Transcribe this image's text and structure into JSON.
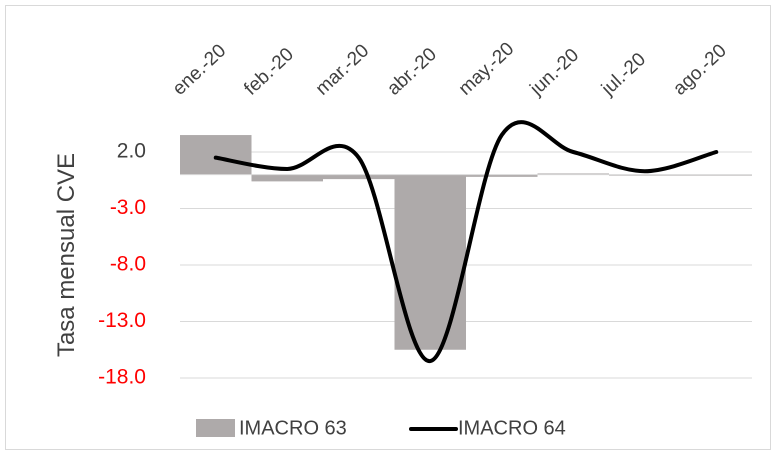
{
  "chart_data": {
    "type": "bar",
    "categories": [
      "ene.-20",
      "feb.-20",
      "mar.-20",
      "abr.-20",
      "may.-20",
      "jun.-20",
      "jul.-20",
      "ago.-20"
    ],
    "series": [
      {
        "name": "IMACRO 63",
        "type": "bar",
        "color": "#aeaaaa",
        "values": [
          3.5,
          -0.6,
          -0.4,
          -15.5,
          -0.2,
          0.1,
          0.0,
          0.0
        ]
      },
      {
        "name": "IMACRO 64",
        "type": "line",
        "color": "#000000",
        "values": [
          1.5,
          0.5,
          1.5,
          -16.5,
          3.5,
          2.0,
          0.3,
          2.0
        ]
      }
    ],
    "title": "",
    "xlabel": "",
    "ylabel": "Tasa mensual CVE",
    "yticks": [
      "2.0",
      "-3.0",
      "-8.0",
      "-13.0",
      "-18.0"
    ],
    "ytick_values": [
      2,
      -3,
      -8,
      -13,
      -18
    ],
    "ylim": [
      -20,
      5.5
    ],
    "grid": true,
    "legend_position": "bottom",
    "colors": {
      "positive_tick": "#404040",
      "negative_tick": "#ff0000",
      "grid": "#d9d9d9"
    }
  }
}
